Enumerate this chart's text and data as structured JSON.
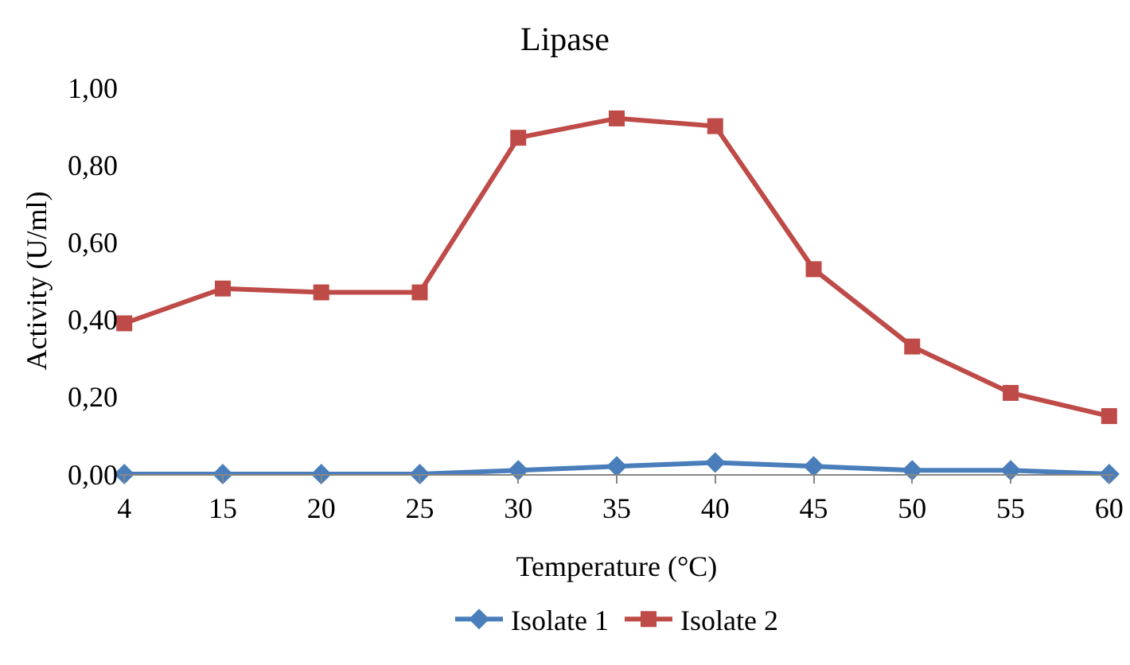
{
  "chart_data": {
    "type": "line",
    "title": "Lipase",
    "xlabel": "Temperature (°C)",
    "ylabel": "Activity (U/ml)",
    "categories": [
      "4",
      "15",
      "20",
      "25",
      "30",
      "35",
      "40",
      "45",
      "50",
      "55",
      "60"
    ],
    "series": [
      {
        "name": "Isolate 1",
        "color": "#4a7ebb",
        "marker": "diamond",
        "values": [
          0,
          0,
          0,
          0,
          0.01,
          0.02,
          0.03,
          0.02,
          0.01,
          0.01,
          0
        ]
      },
      {
        "name": "Isolate 2",
        "color": "#be4b48",
        "marker": "square",
        "values": [
          0.39,
          0.48,
          0.47,
          0.47,
          0.87,
          0.92,
          0.9,
          0.53,
          0.33,
          0.21,
          0.15
        ]
      }
    ],
    "ylim": [
      0,
      1
    ],
    "yticks": [
      {
        "value": 0,
        "label": "0,00"
      },
      {
        "value": 0.2,
        "label": "0,20"
      },
      {
        "value": 0.4,
        "label": "0,40"
      },
      {
        "value": 0.6,
        "label": "0,60"
      },
      {
        "value": 0.8,
        "label": "0,80"
      },
      {
        "value": 1,
        "label": "1,00"
      }
    ],
    "grid": false,
    "legend": "bottom",
    "line_style": "solid"
  }
}
